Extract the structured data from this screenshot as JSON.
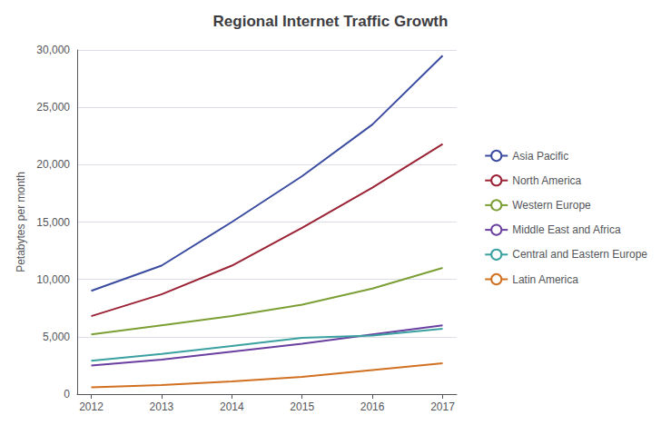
{
  "chart_data": {
    "type": "line",
    "title": "Regional Internet Traffic Growth",
    "ylabel": "Petabytes per month",
    "x": [
      2012,
      2013,
      2014,
      2015,
      2016,
      2017
    ],
    "series": [
      {
        "name": "Asia Pacific",
        "color": "#3B4CA0",
        "values": [
          9000,
          11200,
          15000,
          19000,
          23500,
          29500
        ]
      },
      {
        "name": "North America",
        "color": "#9B2335",
        "values": [
          6800,
          8700,
          11200,
          14500,
          18000,
          21800
        ]
      },
      {
        "name": "Western Europe",
        "color": "#7B9E35",
        "values": [
          5200,
          6000,
          6800,
          7800,
          9200,
          11000
        ]
      },
      {
        "name": "Middle East and Africa",
        "color": "#6A3FA0",
        "values": [
          2500,
          3000,
          3700,
          4400,
          5200,
          6000
        ]
      },
      {
        "name": "Central and Eastern Europe",
        "color": "#3AA0A0",
        "values": [
          2900,
          3500,
          4200,
          4900,
          5100,
          5700
        ]
      },
      {
        "name": "Latin America",
        "color": "#D07020",
        "values": [
          600,
          800,
          1100,
          1500,
          2100,
          2700
        ]
      }
    ],
    "xlim": [
      2011.8,
      2017.2
    ],
    "xticks": [
      2012,
      2013,
      2014,
      2015,
      2016,
      2017
    ],
    "ylim": [
      0,
      30000
    ],
    "yticks": [
      0,
      {
        "value": 5000,
        "label": "5,000"
      },
      {
        "value": 10000,
        "label": "10,000"
      },
      {
        "value": 15000,
        "label": "15,000"
      },
      {
        "value": 20000,
        "label": "20,000"
      },
      {
        "value": 25000,
        "label": "25,000"
      },
      {
        "value": 30000,
        "label": "30,000"
      }
    ],
    "grid": "y",
    "legend": "right"
  }
}
